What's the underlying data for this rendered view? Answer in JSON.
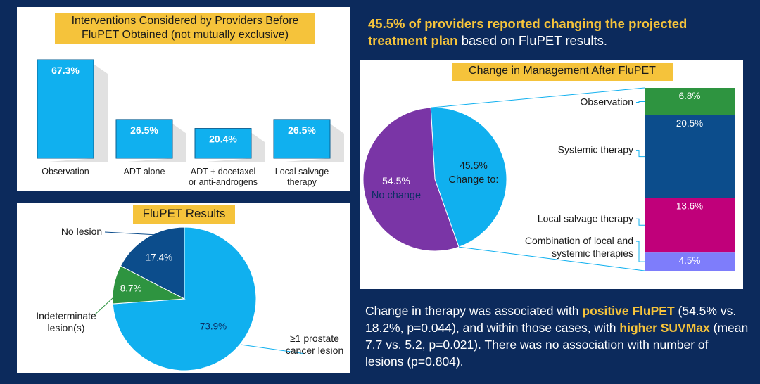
{
  "headline": {
    "highlight": "45.5% of providers reported changing the projected treatment plan",
    "rest": " based on FluPET results."
  },
  "footnote": {
    "p1": "Change in therapy was associated with ",
    "h1": "positive FluPET",
    "p2": " (54.5% vs. 18.2%, p=0.044), and within those cases, with ",
    "h2": "higher SUVMax",
    "p3": " (mean 7.7 vs. 5.2, p=0.021). There was no association with number of lesions (p=0.804)."
  },
  "colors": {
    "bar_blue": "#10b0ef",
    "dark_blue": "#0c4d8c",
    "green": "#2e9440",
    "purple": "#7a35a6",
    "magenta": "#c0007a",
    "lavender": "#7e7dfb",
    "gold": "#f5c33b"
  },
  "chart_data": [
    {
      "type": "bar",
      "title": "Interventions Considered by Providers Before FluPET Obtained (not mutually exclusive)",
      "categories": [
        "Observation",
        "ADT alone",
        "ADT + docetaxel or anti-androgens",
        "Local salvage therapy"
      ],
      "category_lines": [
        [
          "Observation"
        ],
        [
          "ADT alone"
        ],
        [
          "ADT + docetaxel",
          "or anti-androgens"
        ],
        [
          "Local salvage",
          "therapy"
        ]
      ],
      "values": [
        67.3,
        26.5,
        20.4,
        26.5
      ],
      "labels": [
        "67.3%",
        "26.5%",
        "20.4%",
        "26.5%"
      ],
      "ylim": [
        0,
        70
      ]
    },
    {
      "type": "pie",
      "title": "FluPET Results",
      "slices": [
        {
          "name": "≥1 prostate cancer lesion",
          "name_lines": [
            "≥1 prostate",
            "cancer lesion"
          ],
          "value": 73.9,
          "label": "73.9%"
        },
        {
          "name": "Indeterminate lesion(s)",
          "name_lines": [
            "Indeterminate",
            "lesion(s)"
          ],
          "value": 8.7,
          "label": "8.7%"
        },
        {
          "name": "No lesion",
          "name_lines": [
            "No lesion"
          ],
          "value": 17.4,
          "label": "17.4%"
        }
      ]
    },
    {
      "type": "pie",
      "title": "Change in Management After FluPET",
      "slices": [
        {
          "name": "Change to:",
          "value": 45.5,
          "label": "45.5%"
        },
        {
          "name": "No change",
          "value": 54.5,
          "label": "54.5%"
        }
      ],
      "breakdown": {
        "type": "stacked-bar",
        "segments": [
          {
            "name": "Observation",
            "name_lines": [
              "Observation"
            ],
            "value": 6.8,
            "label": "6.8%"
          },
          {
            "name": "Systemic therapy",
            "name_lines": [
              "Systemic therapy"
            ],
            "value": 20.5,
            "label": "20.5%"
          },
          {
            "name": "Local salvage therapy",
            "name_lines": [
              "Local salvage therapy"
            ],
            "value": 13.6,
            "label": "13.6%"
          },
          {
            "name": "Combination of local and systemic therapies",
            "name_lines": [
              "Combination of local and",
              "systemic therapies"
            ],
            "value": 4.5,
            "label": "4.5%"
          }
        ]
      }
    }
  ]
}
